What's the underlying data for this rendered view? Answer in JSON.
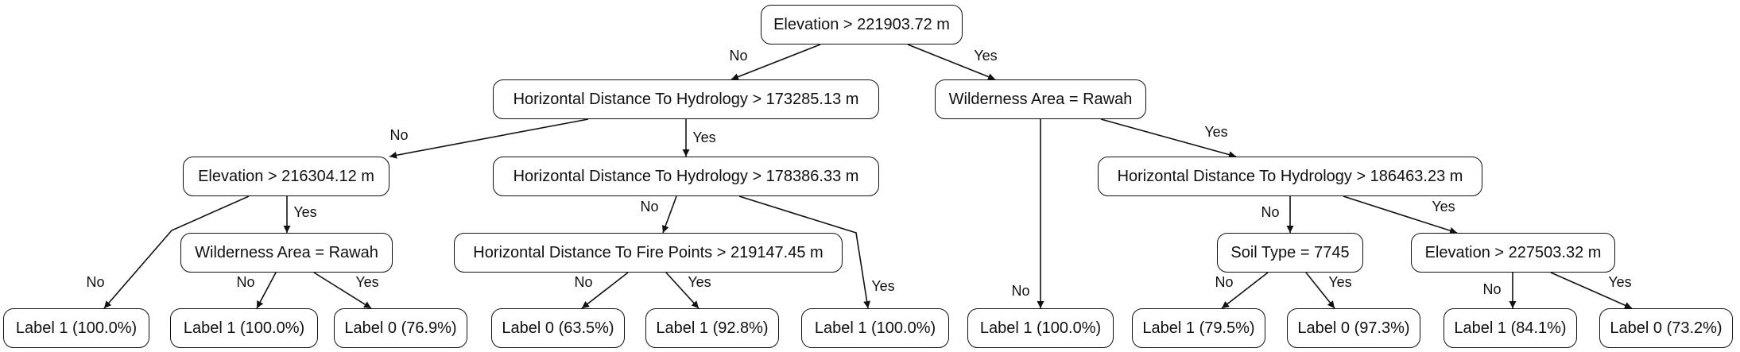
{
  "nodes": {
    "root": "Elevation > 221903.72 m",
    "n_hd1": "Horizontal Distance To Hydrology > 173285.13 m",
    "n_wa1": "Wilderness Area = Rawah",
    "n_el2": "Elevation > 216304.12 m",
    "n_hd2": "Horizontal Distance To Hydrology > 178386.33 m",
    "n_hd3": "Horizontal Distance To Hydrology > 186463.23 m",
    "n_wa2": "Wilderness Area = Rawah",
    "n_fp": "Horizontal Distance To Fire Points > 219147.45 m",
    "n_soil": "Soil Type = 7745",
    "n_el3": "Elevation > 227503.32 m",
    "leaf_1": "Label 1 (100.0%)",
    "leaf_2": "Label 1 (100.0%)",
    "leaf_3": "Label 0 (76.9%)",
    "leaf_4": "Label 0 (63.5%)",
    "leaf_5": "Label 1 (92.8%)",
    "leaf_6": "Label 1 (100.0%)",
    "leaf_7": "Label 1 (100.0%)",
    "leaf_8": "Label 1 (79.5%)",
    "leaf_9": "Label 0 (97.3%)",
    "leaf_10": "Label 1 (84.1%)",
    "leaf_11": "Label 0 (73.2%)"
  },
  "edge_labels": {
    "no": "No",
    "yes": "Yes"
  },
  "edges": [
    {
      "from": "root",
      "to": "n_hd1",
      "label": "no"
    },
    {
      "from": "root",
      "to": "n_wa1",
      "label": "yes"
    },
    {
      "from": "n_hd1",
      "to": "n_el2",
      "label": "no"
    },
    {
      "from": "n_hd1",
      "to": "n_hd2",
      "label": "yes"
    },
    {
      "from": "n_wa1",
      "to": "leaf_7",
      "label": "no"
    },
    {
      "from": "n_wa1",
      "to": "n_hd3",
      "label": "yes"
    },
    {
      "from": "n_el2",
      "to": "leaf_1",
      "label": "no"
    },
    {
      "from": "n_el2",
      "to": "n_wa2",
      "label": "yes"
    },
    {
      "from": "n_wa2",
      "to": "leaf_2",
      "label": "no"
    },
    {
      "from": "n_wa2",
      "to": "leaf_3",
      "label": "yes"
    },
    {
      "from": "n_hd2",
      "to": "n_fp",
      "label": "no"
    },
    {
      "from": "n_hd2",
      "to": "leaf_6",
      "label": "yes"
    },
    {
      "from": "n_fp",
      "to": "leaf_4",
      "label": "no"
    },
    {
      "from": "n_fp",
      "to": "leaf_5",
      "label": "yes"
    },
    {
      "from": "n_hd3",
      "to": "n_soil",
      "label": "no"
    },
    {
      "from": "n_hd3",
      "to": "n_el3",
      "label": "yes"
    },
    {
      "from": "n_soil",
      "to": "leaf_8",
      "label": "no"
    },
    {
      "from": "n_soil",
      "to": "leaf_9",
      "label": "yes"
    },
    {
      "from": "n_el3",
      "to": "leaf_10",
      "label": "no"
    },
    {
      "from": "n_el3",
      "to": "leaf_11",
      "label": "yes"
    }
  ]
}
